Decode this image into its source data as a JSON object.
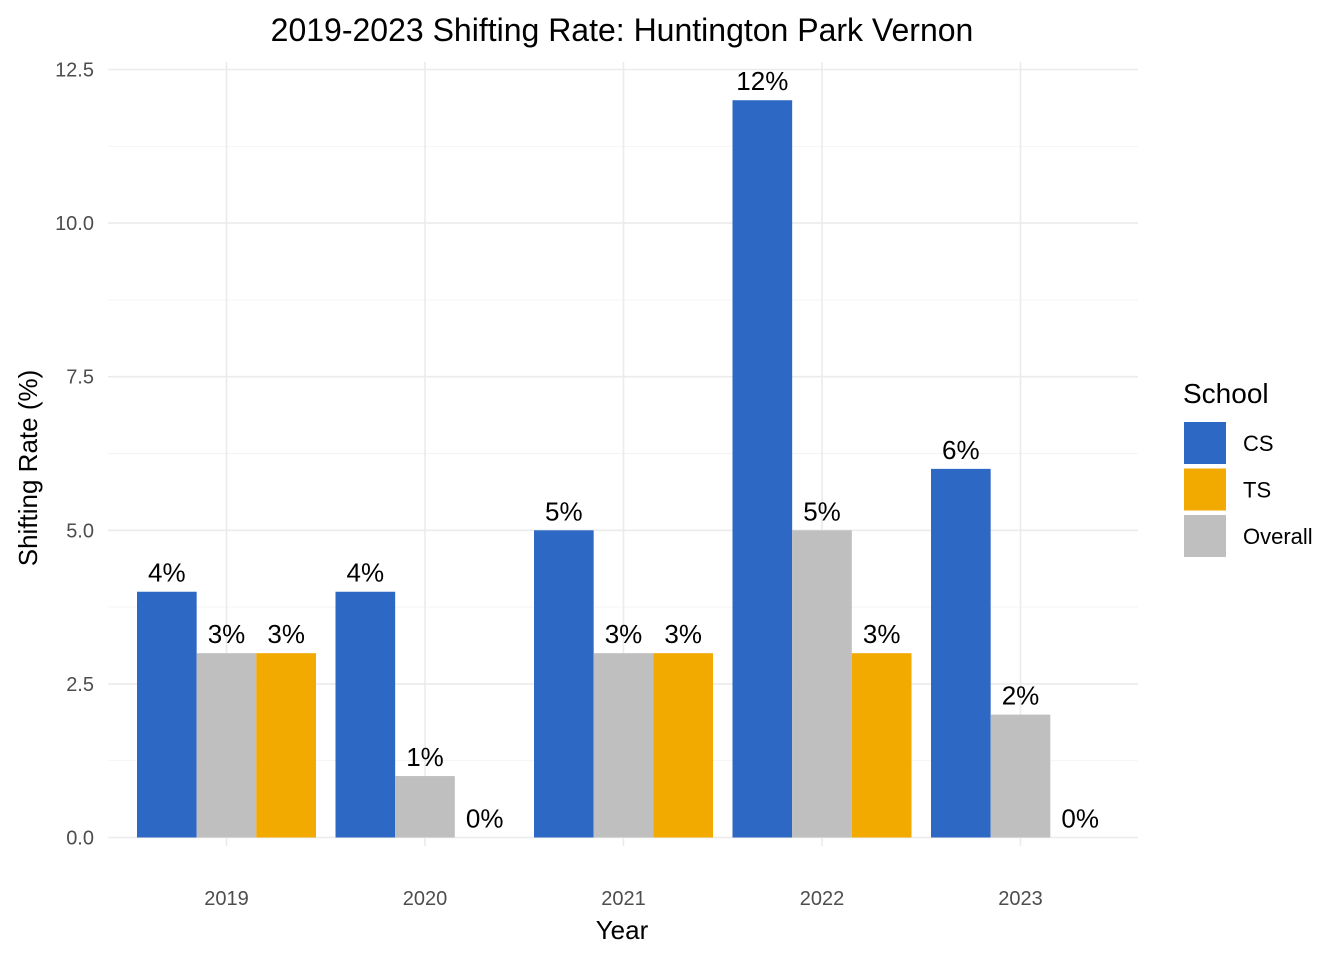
{
  "chart_data": {
    "type": "bar",
    "title": "2019-2023 Shifting Rate: Huntington Park Vernon",
    "xlabel": "Year",
    "ylabel": "Shifting Rate (%)",
    "categories": [
      "2019",
      "2020",
      "2021",
      "2022",
      "2023"
    ],
    "ylim": [
      0,
      12.5
    ],
    "yticks": [
      0,
      2.5,
      5,
      7.5,
      10,
      12.5
    ],
    "ytick_labels": [
      "0.0",
      "2.5",
      "5.0",
      "7.5",
      "10.0",
      "12.5"
    ],
    "grid": true,
    "legend": {
      "title": "School",
      "position": "right"
    },
    "series": [
      {
        "name": "CS",
        "color": "#2e68c5",
        "values": [
          4,
          4,
          5,
          12,
          6
        ],
        "labels": [
          "4%",
          "4%",
          "5%",
          "12%",
          "6%"
        ]
      },
      {
        "name": "Overall",
        "color": "#bfbfbf",
        "values": [
          3,
          1,
          3,
          5,
          2
        ],
        "labels": [
          "3%",
          "1%",
          "3%",
          "5%",
          "2%"
        ]
      },
      {
        "name": "TS",
        "color": "#f2a900",
        "values": [
          3,
          0,
          3,
          3,
          0
        ],
        "labels": [
          "3%",
          "0%",
          "3%",
          "3%",
          "0%"
        ]
      }
    ],
    "legend_order": [
      "CS",
      "TS",
      "Overall"
    ]
  }
}
